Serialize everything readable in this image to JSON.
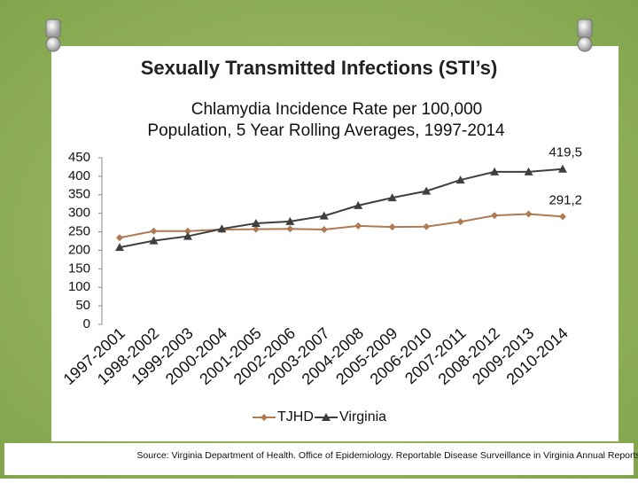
{
  "slide_title": "Sexually Transmitted Infections (STI’s)",
  "source": "Source: Virginia Department of Health. Office of Epidemiology. Reportable Disease Surveillance in Virginia Annual Reports.",
  "chart_data": {
    "type": "line",
    "title": [
      "Chlamydia Incidence Rate per 100,000",
      "Population,  5 Year Rolling Averages, 1997-2014"
    ],
    "categories": [
      "1997-2001",
      "1998-2002",
      "1999-2003",
      "2000-2004",
      "2001-2005",
      "2002-2006",
      "2003-2007",
      "2004-2008",
      "2005-2009",
      "2006-2010",
      "2007-2011",
      "2008-2012",
      "2009-2013",
      "2010-2014"
    ],
    "series": [
      {
        "name": "TJHD",
        "color": "#b07a52",
        "marker": "diamond",
        "values": [
          234,
          252,
          252,
          256,
          257,
          258,
          256,
          266,
          263,
          264,
          277,
          294,
          298,
          291.2
        ],
        "value_labels": [
          null,
          null,
          null,
          null,
          null,
          null,
          null,
          null,
          null,
          null,
          null,
          null,
          null,
          "291,2"
        ]
      },
      {
        "name": "Virginia",
        "color": "#3f3f3f",
        "marker": "triangle",
        "values": [
          208,
          226,
          238,
          258,
          273,
          278,
          293,
          321,
          342,
          360,
          390,
          412,
          412,
          419.5
        ],
        "value_labels": [
          null,
          null,
          null,
          null,
          null,
          null,
          null,
          null,
          null,
          null,
          null,
          null,
          null,
          "419,5"
        ]
      }
    ],
    "ylim": [
      0,
      450
    ],
    "yticks": [
      0,
      50,
      100,
      150,
      200,
      250,
      300,
      350,
      400,
      450
    ],
    "legend": "bottom"
  }
}
